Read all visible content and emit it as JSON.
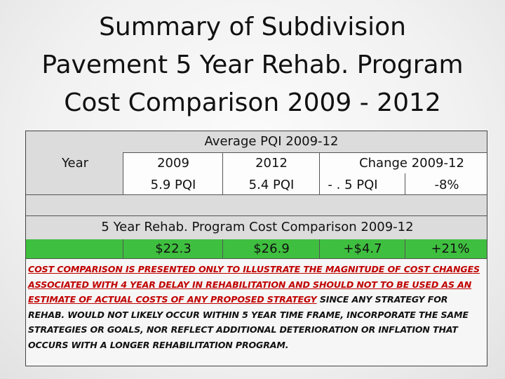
{
  "title": {
    "line1": "Summary of Subdivision",
    "line2": "Pavement 5 Year Rehab. Program",
    "line3": "Cost Comparison  2009 - 2012"
  },
  "pqi": {
    "header": "Average PQI 2009-12",
    "year_label": "Year",
    "col_2009": "2009",
    "col_2012": "2012",
    "col_change": "Change 2009-12",
    "val_2009": "5.9 PQI",
    "val_2012": "5.4 PQI",
    "val_change": "- . 5 PQI",
    "val_pct": "-8%"
  },
  "cost": {
    "header": "5 Year Rehab. Program Cost Comparison  2009-12",
    "val_2009": "$22.3",
    "val_2012": "$26.9",
    "val_change": "+$4.7",
    "val_pct": "+21%"
  },
  "note": {
    "red_part": "COST COMPARISON IS PRESENTED ONLY  TO ILLUSTRATE THE  MAGNITUDE OF COST CHANGES ASSOCIATED WITH 4 YEAR DELAY IN REHABILITATION  AND SHOULD NOT TO BE USED AS AN ESTIMATE OF ACTUAL COSTS  OF ANY PROPOSED STRATEGY",
    "black_part": " SINCE ANY STRATEGY FOR REHAB. WOULD NOT LIKELY OCCUR WITHIN 5 YEAR TIME FRAME, INCORPORATE THE SAME STRATEGIES OR GOALS, NOR REFLECT ADDITIONAL DETERIORATION OR INFLATION THAT OCCURS WITH A LONGER REHABILITATION PROGRAM."
  },
  "colors": {
    "green": "#3fbf3f",
    "red": "#c00000",
    "gray": "#dcdcdc"
  }
}
